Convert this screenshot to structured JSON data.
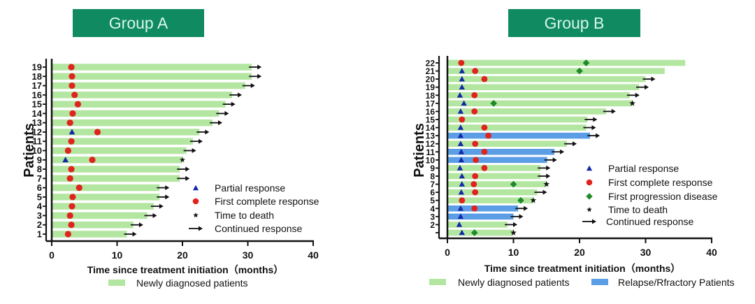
{
  "headers": {
    "group_a": "Group A",
    "group_b": "Group B"
  },
  "colors": {
    "newly_diagnosed": "#b3e6a0",
    "relapse_refractory": "#5b9ee6",
    "partial_response": "#1428a8",
    "first_complete_response": "#e0231c",
    "first_progression_disease": "#1f8a2a",
    "time_to_death": "#111111",
    "continued_response": "#111111",
    "header_bg": "#0f8a61",
    "header_text": "#d9f6ea"
  },
  "chart_data": [
    {
      "type": "swimmer",
      "title": "Group A",
      "xlabel": "Time since treatment initiation（months）",
      "ylabel": "Patients",
      "xlim": [
        0,
        40
      ],
      "xticks": [
        0,
        10,
        20,
        30,
        40
      ],
      "legend": [
        {
          "marker": "triangle",
          "label": "Partial response"
        },
        {
          "marker": "circle",
          "label": "First complete response"
        },
        {
          "marker": "star",
          "label": "Time to death"
        },
        {
          "marker": "arrow",
          "label": "Continued response"
        }
      ],
      "bar_legend": [
        {
          "category": "newly",
          "label": "Newly diagnosed patients"
        }
      ],
      "patients": [
        {
          "id": 1,
          "label": "1",
          "category": "newly",
          "end": 11.5,
          "pr": null,
          "cr": 2.5,
          "pd": null,
          "death": null,
          "continued": true
        },
        {
          "id": 2,
          "label": "2",
          "category": "newly",
          "end": 12.5,
          "pr": null,
          "cr": 3.0,
          "pd": null,
          "death": null,
          "continued": true
        },
        {
          "id": 3,
          "label": "3",
          "category": "newly",
          "end": 14.6,
          "pr": null,
          "cr": 2.8,
          "pd": null,
          "death": null,
          "continued": true
        },
        {
          "id": 4,
          "label": "4",
          "category": "newly",
          "end": 15.6,
          "pr": null,
          "cr": 3.1,
          "pd": null,
          "death": null,
          "continued": true
        },
        {
          "id": 5,
          "label": "5",
          "category": "newly",
          "end": 16.5,
          "pr": null,
          "cr": 3.2,
          "pd": null,
          "death": null,
          "continued": true
        },
        {
          "id": 6,
          "label": "6",
          "category": "newly",
          "end": 16.5,
          "pr": null,
          "cr": 4.2,
          "pd": null,
          "death": null,
          "continued": true
        },
        {
          "id": 7,
          "label": "7",
          "category": "newly",
          "end": 19.6,
          "pr": null,
          "cr": 2.8,
          "pd": null,
          "death": null,
          "continued": true
        },
        {
          "id": 8,
          "label": "8",
          "category": "newly",
          "end": 19.6,
          "pr": null,
          "cr": 3.0,
          "pd": null,
          "death": null,
          "continued": true
        },
        {
          "id": 9,
          "label": "9",
          "category": "newly",
          "end": 20.0,
          "pr": 2.1,
          "cr": 6.2,
          "pd": null,
          "death": 20.0,
          "continued": false
        },
        {
          "id": 10,
          "label": "10",
          "category": "newly",
          "end": 20.6,
          "pr": null,
          "cr": 2.5,
          "pd": null,
          "death": null,
          "continued": true
        },
        {
          "id": 11,
          "label": "11",
          "category": "newly",
          "end": 21.6,
          "pr": null,
          "cr": 3.0,
          "pd": null,
          "death": null,
          "continued": true
        },
        {
          "id": 12,
          "label": "12",
          "category": "newly",
          "end": 22.6,
          "pr": 3.1,
          "cr": 7.0,
          "pd": null,
          "death": null,
          "continued": true
        },
        {
          "id": 13,
          "label": "13",
          "category": "newly",
          "end": 24.6,
          "pr": null,
          "cr": 2.8,
          "pd": null,
          "death": null,
          "continued": true
        },
        {
          "id": 14,
          "label": "14",
          "category": "newly",
          "end": 25.6,
          "pr": null,
          "cr": 3.2,
          "pd": null,
          "death": null,
          "continued": true
        },
        {
          "id": 15,
          "label": "15",
          "category": "newly",
          "end": 26.6,
          "pr": null,
          "cr": 4.0,
          "pd": null,
          "death": null,
          "continued": true
        },
        {
          "id": 16,
          "label": "16",
          "category": "newly",
          "end": 27.6,
          "pr": null,
          "cr": 3.5,
          "pd": null,
          "death": null,
          "continued": true
        },
        {
          "id": 17,
          "label": "17",
          "category": "newly",
          "end": 29.6,
          "pr": null,
          "cr": 3.1,
          "pd": null,
          "death": null,
          "continued": true
        },
        {
          "id": 18,
          "label": "18",
          "category": "newly",
          "end": 30.6,
          "pr": null,
          "cr": 3.1,
          "pd": null,
          "death": null,
          "continued": true
        },
        {
          "id": 19,
          "label": "19",
          "category": "newly",
          "end": 30.6,
          "pr": null,
          "cr": 3.0,
          "pd": null,
          "death": null,
          "continued": true
        }
      ]
    },
    {
      "type": "swimmer",
      "title": "Group B",
      "xlabel": "Time since treatment initiation（months）",
      "ylabel": "Patients",
      "xlim": [
        0,
        40
      ],
      "xticks": [
        0,
        10,
        20,
        30,
        40
      ],
      "legend": [
        {
          "marker": "triangle",
          "label": "Partial response"
        },
        {
          "marker": "circle",
          "label": "First complete response"
        },
        {
          "marker": "diamond",
          "label": "First progression disease"
        },
        {
          "marker": "star",
          "label": "Time to death"
        },
        {
          "marker": "arrow",
          "label": "Continued response"
        }
      ],
      "bar_legend": [
        {
          "category": "newly",
          "label": "Newly diagnosed patients"
        },
        {
          "category": "relapse",
          "label": "Relapse/Rfractory Patients"
        }
      ],
      "patients": [
        {
          "id": 1,
          "label": "",
          "category": "newly",
          "end": 10.0,
          "pr": 2.2,
          "cr": null,
          "pd": 4.1,
          "death": 10.0,
          "continued": false
        },
        {
          "id": 2,
          "label": "2",
          "category": "newly",
          "end": 9.1,
          "pr": 1.8,
          "cr": null,
          "pd": null,
          "death": null,
          "continued": true
        },
        {
          "id": 3,
          "label": "3",
          "category": "relapse",
          "end": 10.0,
          "pr": 2.0,
          "cr": null,
          "pd": null,
          "death": null,
          "continued": true
        },
        {
          "id": 4,
          "label": "4",
          "category": "relapse",
          "end": 10.7,
          "pr": 2.0,
          "cr": 4.1,
          "pd": null,
          "death": null,
          "continued": true
        },
        {
          "id": 5,
          "label": "5",
          "category": "newly",
          "end": 13.0,
          "pr": null,
          "cr": 2.2,
          "pd": 11.1,
          "death": 13.0,
          "continued": false
        },
        {
          "id": 6,
          "label": "6",
          "category": "newly",
          "end": 13.6,
          "pr": 2.1,
          "cr": 4.2,
          "pd": null,
          "death": null,
          "continued": true
        },
        {
          "id": 7,
          "label": "7",
          "category": "newly",
          "end": 15.0,
          "pr": 2.2,
          "cr": 4.0,
          "pd": 10.0,
          "death": 15.0,
          "continued": false
        },
        {
          "id": 8,
          "label": "8",
          "category": "newly",
          "end": 14.1,
          "pr": 2.2,
          "cr": 4.2,
          "pd": null,
          "death": null,
          "continued": true
        },
        {
          "id": 9,
          "label": "9",
          "category": "newly",
          "end": 14.1,
          "pr": 1.9,
          "cr": 5.6,
          "pd": null,
          "death": null,
          "continued": true
        },
        {
          "id": 10,
          "label": "10",
          "category": "relapse",
          "end": 15.1,
          "pr": 2.1,
          "cr": 4.3,
          "pd": null,
          "death": null,
          "continued": true
        },
        {
          "id": 11,
          "label": "11",
          "category": "relapse",
          "end": 16.2,
          "pr": 2.1,
          "cr": 5.6,
          "pd": null,
          "death": null,
          "continued": true
        },
        {
          "id": 12,
          "label": "12",
          "category": "newly",
          "end": 18.1,
          "pr": 2.0,
          "cr": 4.2,
          "pd": null,
          "death": null,
          "continued": true
        },
        {
          "id": 13,
          "label": "13",
          "category": "relapse",
          "end": 21.6,
          "pr": 2.0,
          "cr": 6.2,
          "pd": null,
          "death": null,
          "continued": true
        },
        {
          "id": 14,
          "label": "14",
          "category": "newly",
          "end": 21.0,
          "pr": 2.0,
          "cr": 5.6,
          "pd": null,
          "death": null,
          "continued": true
        },
        {
          "id": 15,
          "label": "15",
          "category": "newly",
          "end": 21.2,
          "pr": null,
          "cr": 2.2,
          "pd": null,
          "death": null,
          "continued": true
        },
        {
          "id": 16,
          "label": "16",
          "category": "newly",
          "end": 24.0,
          "pr": 2.0,
          "cr": 4.1,
          "pd": null,
          "death": null,
          "continued": true
        },
        {
          "id": 17,
          "label": "17",
          "category": "newly",
          "end": 28.0,
          "pr": 2.5,
          "cr": null,
          "pd": 7.0,
          "death": 28.0,
          "continued": false
        },
        {
          "id": 18,
          "label": "18",
          "category": "newly",
          "end": 27.6,
          "pr": 1.9,
          "cr": 4.1,
          "pd": null,
          "death": null,
          "continued": true
        },
        {
          "id": 19,
          "label": "19",
          "category": "newly",
          "end": 29.0,
          "pr": 2.2,
          "cr": null,
          "pd": null,
          "death": null,
          "continued": true
        },
        {
          "id": 20,
          "label": "20",
          "category": "newly",
          "end": 30.0,
          "pr": 2.2,
          "cr": 5.6,
          "pd": null,
          "death": null,
          "continued": true
        },
        {
          "id": 21,
          "label": "21",
          "category": "newly",
          "end": 32.9,
          "pr": 2.2,
          "cr": 4.2,
          "pd": 20.0,
          "death": null,
          "continued": false
        },
        {
          "id": 22,
          "label": "22",
          "category": "newly",
          "end": 36.0,
          "pr": null,
          "cr": 2.1,
          "pd": 21.0,
          "death": null,
          "continued": false
        }
      ]
    }
  ]
}
